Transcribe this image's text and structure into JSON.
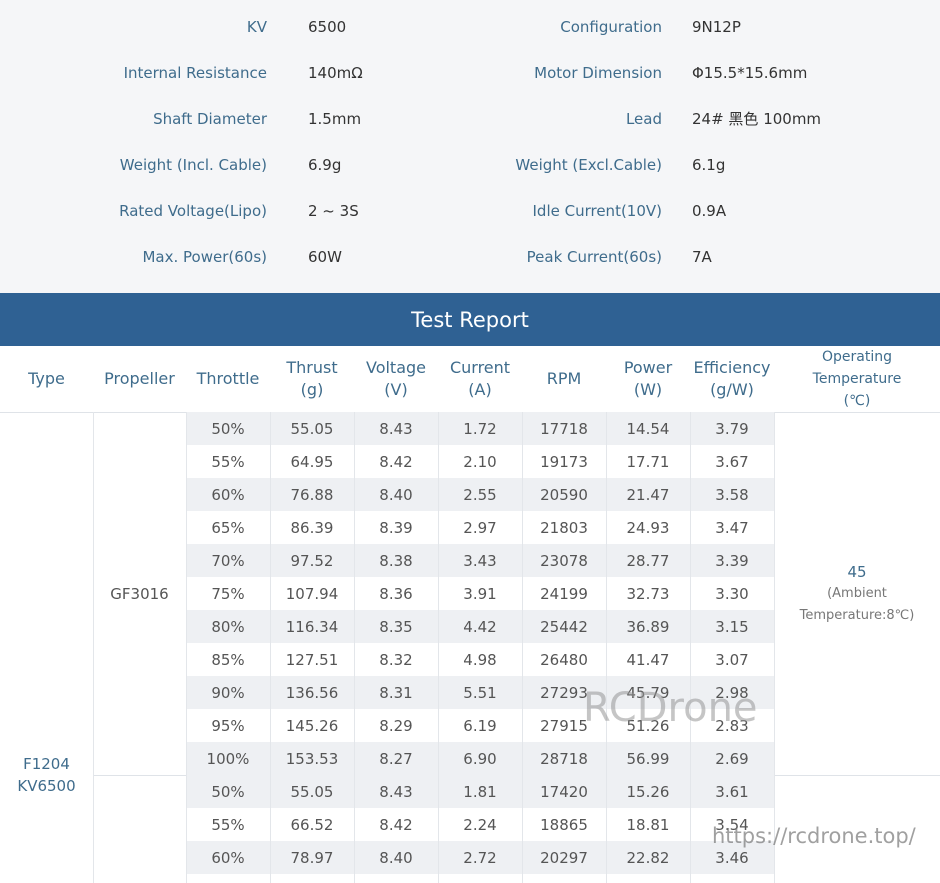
{
  "specs": [
    [
      "KV",
      "6500",
      "Configuration",
      "9N12P"
    ],
    [
      "Internal Resistance",
      "140mΩ",
      "Motor Dimension",
      "Φ15.5*15.6mm"
    ],
    [
      "Shaft Diameter",
      "1.5mm",
      "Lead",
      "24# 黑色 100mm"
    ],
    [
      "Weight (Incl. Cable)",
      "6.9g",
      "Weight (Excl.Cable)",
      "6.1g"
    ],
    [
      "Rated Voltage(Lipo)",
      "2 ~ 3S",
      "Idle Current(10V)",
      "0.9A"
    ],
    [
      "Max. Power(60s)",
      "60W",
      "Peak Current(60s)",
      "7A"
    ]
  ],
  "test_report": {
    "title": "Test Report",
    "columns": [
      [
        "Type"
      ],
      [
        "Propeller"
      ],
      [
        "Throttle"
      ],
      [
        "Thrust",
        "(g)"
      ],
      [
        "Voltage",
        "(V)"
      ],
      [
        "Current",
        "(A)"
      ],
      [
        "RPM"
      ],
      [
        "Power",
        "(W)"
      ],
      [
        "Efficiency",
        "(g/W)"
      ],
      [
        "Operating",
        "Temperature",
        "(℃)"
      ]
    ],
    "type": [
      "F1204",
      "KV6500"
    ],
    "groups": [
      {
        "propeller": "GF3016",
        "temperature": [
          "45",
          "(Ambient",
          "Temperature:8℃)"
        ],
        "rows": [
          [
            "50%",
            "55.05",
            "8.43",
            "1.72",
            "17718",
            "14.54",
            "3.79"
          ],
          [
            "55%",
            "64.95",
            "8.42",
            "2.10",
            "19173",
            "17.71",
            "3.67"
          ],
          [
            "60%",
            "76.88",
            "8.40",
            "2.55",
            "20590",
            "21.47",
            "3.58"
          ],
          [
            "65%",
            "86.39",
            "8.39",
            "2.97",
            "21803",
            "24.93",
            "3.47"
          ],
          [
            "70%",
            "97.52",
            "8.38",
            "3.43",
            "23078",
            "28.77",
            "3.39"
          ],
          [
            "75%",
            "107.94",
            "8.36",
            "3.91",
            "24199",
            "32.73",
            "3.30"
          ],
          [
            "80%",
            "116.34",
            "8.35",
            "4.42",
            "25442",
            "36.89",
            "3.15"
          ],
          [
            "85%",
            "127.51",
            "8.32",
            "4.98",
            "26480",
            "41.47",
            "3.07"
          ],
          [
            "90%",
            "136.56",
            "8.31",
            "5.51",
            "27293",
            "45.79",
            "2.98"
          ],
          [
            "95%",
            "145.26",
            "8.29",
            "6.19",
            "27915",
            "51.26",
            "2.83"
          ],
          [
            "100%",
            "153.53",
            "8.27",
            "6.90",
            "28718",
            "56.99",
            "2.69"
          ]
        ]
      },
      {
        "rows": [
          [
            "50%",
            "55.05",
            "8.43",
            "1.81",
            "17420",
            "15.26",
            "3.61"
          ],
          [
            "55%",
            "66.52",
            "8.42",
            "2.24",
            "18865",
            "18.81",
            "3.54"
          ],
          [
            "60%",
            "78.97",
            "8.40",
            "2.72",
            "20297",
            "22.82",
            "3.46"
          ]
        ]
      }
    ]
  },
  "watermarks": [
    "RCDrone",
    "https://rcdrone.top/"
  ]
}
